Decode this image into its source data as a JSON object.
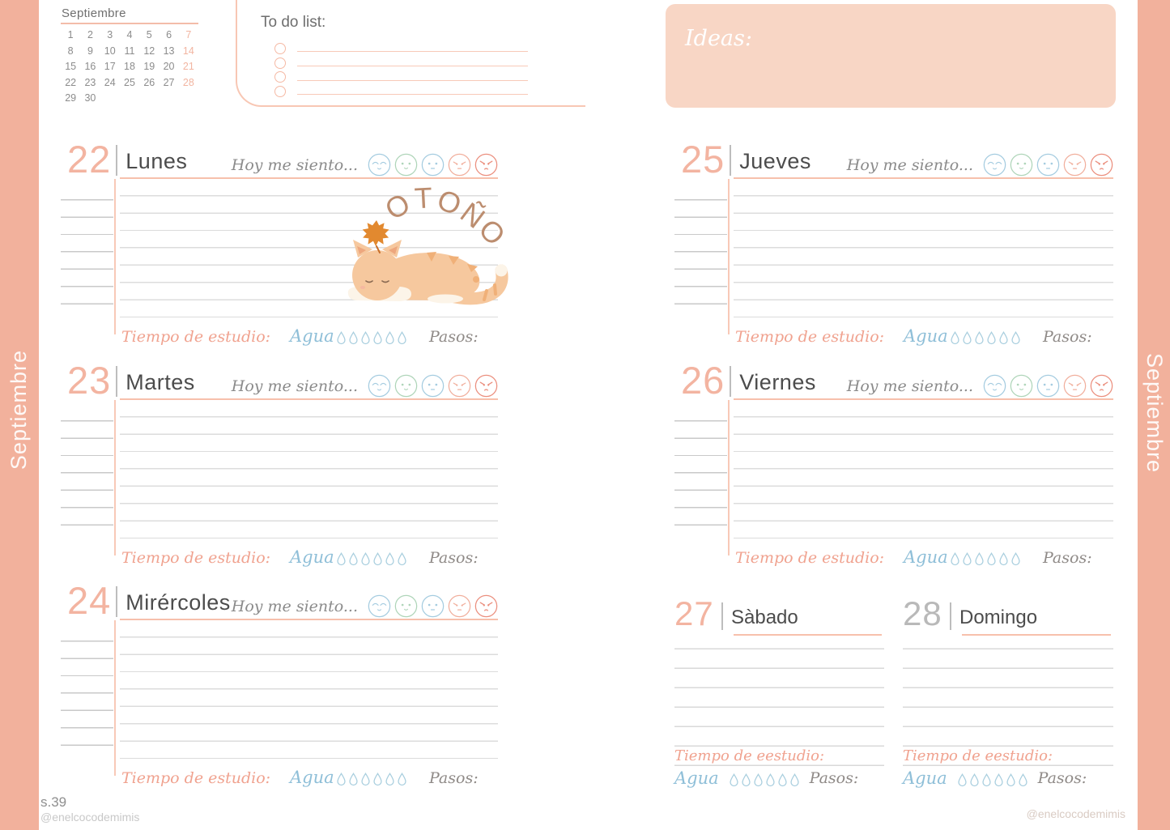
{
  "month": "Septiembre",
  "page_label": "s.39",
  "credit_left": "@enelcocodemimis",
  "credit_right": "@enelcocodemimis",
  "mini_calendar": {
    "title": "Septiembre",
    "cells": [
      "1",
      "2",
      "3",
      "4",
      "5",
      "6",
      "7",
      "8",
      "9",
      "10",
      "11",
      "12",
      "13",
      "14",
      "15",
      "16",
      "17",
      "18",
      "19",
      "20",
      "21",
      "22",
      "23",
      "24",
      "25",
      "26",
      "27",
      "28",
      "29",
      "30"
    ],
    "sundays": [
      "7",
      "14",
      "21",
      "28"
    ]
  },
  "todo": {
    "title": "To do list:",
    "rows": 4
  },
  "ideas": {
    "label": "Ideas:"
  },
  "labels": {
    "mood": "Hoy me siento...",
    "study": "Tiempo de estudio:",
    "study_weekend": "Tiempo de eestudio:",
    "water": "Agua",
    "steps": "Pasos:"
  },
  "decoration": {
    "autumn_text": "OTOÑO",
    "sticker": "sleeping-cat-with-autumn-leaf"
  },
  "days": [
    {
      "number": "22",
      "name": "Lunes"
    },
    {
      "number": "23",
      "name": "Martes"
    },
    {
      "number": "24",
      "name": "Mirércoles"
    },
    {
      "number": "25",
      "name": "Jueves"
    },
    {
      "number": "26",
      "name": "Viernes"
    },
    {
      "number": "27",
      "name": "Sàbado"
    },
    {
      "number": "28",
      "name": "Domingo"
    }
  ],
  "colors": {
    "sidebar": "#f2b19c",
    "accent_peach": "#f3b4a1",
    "ideas_bg": "#f8d6c5",
    "water_blue": "#a8cede",
    "face_green": "#afd5b9",
    "face_red": "#eb8f7e",
    "text_dark": "#4c4c4c",
    "line_gray": "#dcdcdc",
    "otono_brown": "#bc8d6f"
  }
}
